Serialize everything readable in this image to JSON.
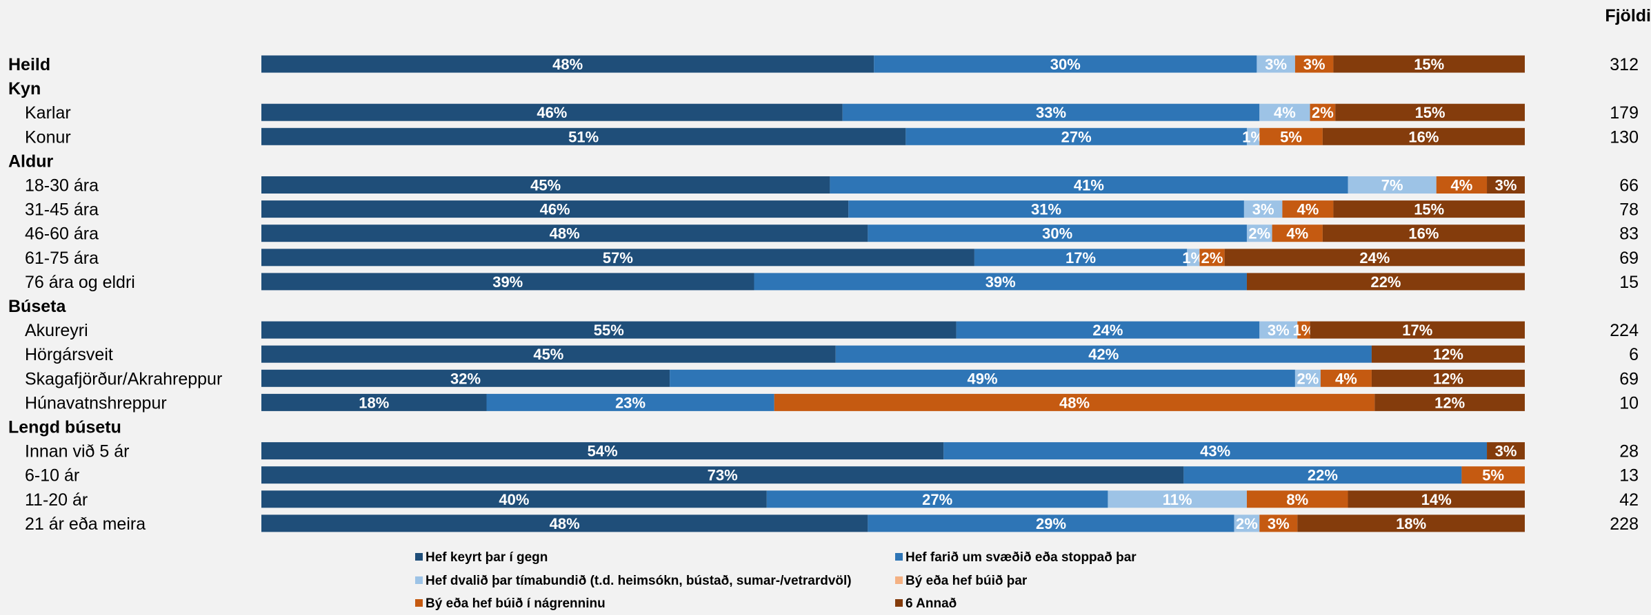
{
  "chart_data": {
    "type": "bar",
    "stacked": true,
    "orientation": "horizontal",
    "normalized_percent": true,
    "count_header": "Fjöldi",
    "legend_position": "bottom",
    "series": [
      {
        "name": "Hef keyrt þar í gegn",
        "color": "#1f4e79"
      },
      {
        "name": "Hef farið um svæðið eða stoppað þar",
        "color": "#2e75b6"
      },
      {
        "name": "Hef dvalið þar tímabundið (t.d. heimsókn, bústað, sumar-/vetrardvöl)",
        "color": "#9dc3e6"
      },
      {
        "name": "Bý eða hef búið þar",
        "color": "#f4b183"
      },
      {
        "name": "Bý eða hef búið í nágrenninu",
        "color": "#c55a11"
      },
      {
        "name": "6 Annað",
        "color": "#843c0c"
      }
    ],
    "rows": [
      {
        "label": "Heild",
        "group": true,
        "values": [
          48,
          30,
          3,
          0,
          3,
          15
        ],
        "count": "312"
      },
      {
        "label": "Kyn",
        "header": true
      },
      {
        "label": "Karlar",
        "values": [
          46,
          33,
          4,
          0,
          2,
          15
        ],
        "count": "179"
      },
      {
        "label": "Konur",
        "values": [
          51,
          27,
          1,
          0,
          5,
          16
        ],
        "count": "130"
      },
      {
        "label": "Aldur",
        "header": true
      },
      {
        "label": "18-30 ára",
        "values": [
          45,
          41,
          7,
          0,
          4,
          3
        ],
        "count": "66"
      },
      {
        "label": "31-45 ára",
        "values": [
          46,
          31,
          3,
          0,
          4,
          15
        ],
        "count": "78"
      },
      {
        "label": "46-60 ára",
        "values": [
          48,
          30,
          2,
          0,
          4,
          16
        ],
        "count": "83"
      },
      {
        "label": "61-75 ára",
        "values": [
          57,
          17,
          1,
          0,
          2,
          24
        ],
        "count": "69"
      },
      {
        "label": "76 ára og eldri",
        "values": [
          39,
          39,
          0,
          0,
          0,
          22
        ],
        "count": "15"
      },
      {
        "label": "Búseta",
        "header": true
      },
      {
        "label": "Akureyri",
        "values": [
          55,
          24,
          3,
          0,
          1,
          17
        ],
        "count": "224"
      },
      {
        "label": "Hörgársveit",
        "values": [
          45,
          42,
          0,
          0,
          0,
          12
        ],
        "count": "6"
      },
      {
        "label": "Skagafjörður/Akrahreppur",
        "values": [
          32,
          49,
          2,
          0,
          4,
          12
        ],
        "count": "69"
      },
      {
        "label": "Húnavatnshreppur",
        "values": [
          18,
          23,
          0,
          0,
          48,
          12
        ],
        "count": "10"
      },
      {
        "label": "Lengd búsetu",
        "header": true
      },
      {
        "label": "Innan við 5 ár",
        "values": [
          54,
          43,
          0,
          0,
          0,
          3
        ],
        "count": "28"
      },
      {
        "label": "6-10 ár",
        "values": [
          73,
          22,
          0,
          0,
          5,
          0
        ],
        "count": "13"
      },
      {
        "label": "11-20 ár",
        "values": [
          40,
          27,
          11,
          0,
          8,
          14
        ],
        "count": "42"
      },
      {
        "label": "21 ár eða meira",
        "values": [
          48,
          29,
          2,
          0,
          3,
          18
        ],
        "count": "228"
      }
    ]
  }
}
